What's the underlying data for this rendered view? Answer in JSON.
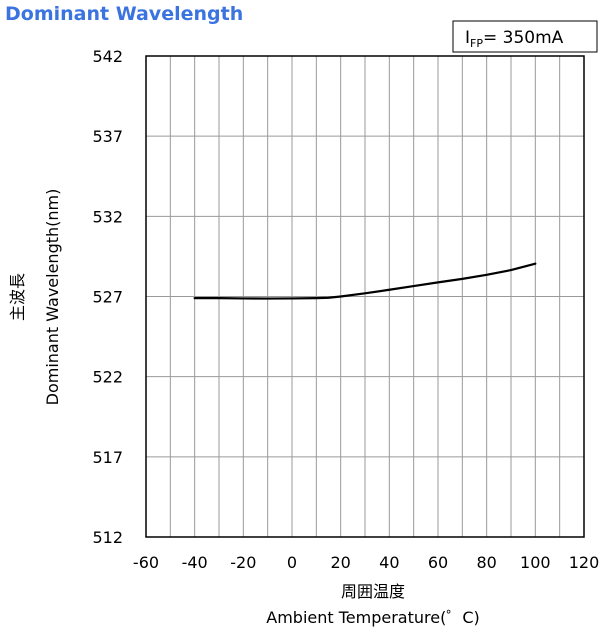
{
  "chart_data": {
    "type": "line",
    "title": "Dominant Wavelength",
    "condition": {
      "symbol": "I",
      "subscript": "FP",
      "value": "= 350mA"
    },
    "xlabel_jp": "周囲温度",
    "xlabel": "Ambient Temperature(゜C)",
    "ylabel_jp": "主波長",
    "ylabel": "Dominant Wavelength(nm)",
    "xlim": [
      -60,
      120
    ],
    "ylim": [
      512,
      542
    ],
    "x_ticks": [
      -60,
      -40,
      -20,
      0,
      20,
      40,
      60,
      80,
      100,
      120
    ],
    "y_ticks": [
      512,
      517,
      522,
      527,
      532,
      537,
      542
    ],
    "x_gridlines": [
      -50,
      -40,
      -30,
      -20,
      -10,
      0,
      10,
      20,
      30,
      40,
      50,
      60,
      70,
      80,
      90,
      100,
      110
    ],
    "y_gridlines": [
      517,
      522,
      527,
      532,
      537
    ],
    "series": [
      {
        "color": "#000000",
        "x": [
          -40,
          -30,
          -20,
          -10,
          0,
          10,
          15,
          20,
          30,
          40,
          50,
          60,
          70,
          80,
          90,
          100
        ],
        "y": [
          526.9,
          526.9,
          526.88,
          526.87,
          526.88,
          526.9,
          526.92,
          527.0,
          527.2,
          527.42,
          527.65,
          527.88,
          528.1,
          528.35,
          528.65,
          529.05
        ]
      }
    ]
  }
}
